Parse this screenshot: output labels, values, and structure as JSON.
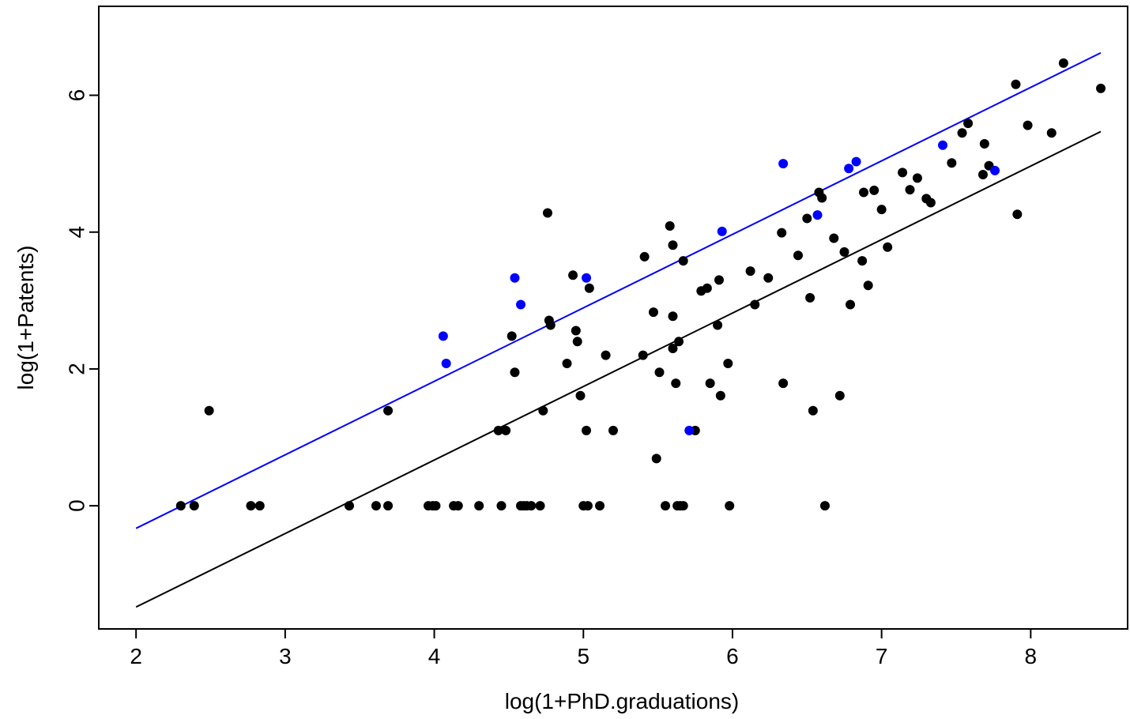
{
  "chart_data": {
    "type": "scatter",
    "title": "",
    "xlabel": "log(1+PhD.graduations)",
    "ylabel": "log(1+Patents)",
    "xlim": [
      1.75,
      8.65
    ],
    "ylim": [
      -1.8,
      7.3
    ],
    "xticks": [
      2,
      3,
      4,
      5,
      6,
      7,
      8
    ],
    "yticks": [
      0,
      2,
      4,
      6
    ],
    "grid": false,
    "legend": "none",
    "series": [
      {
        "color": "#000000",
        "points": [
          [
            2.3,
            0
          ],
          [
            2.39,
            0
          ],
          [
            2.49,
            1.39
          ],
          [
            2.77,
            0
          ],
          [
            2.83,
            0
          ],
          [
            3.43,
            0
          ],
          [
            3.61,
            0
          ],
          [
            3.69,
            0
          ],
          [
            3.69,
            1.39
          ],
          [
            3.96,
            0
          ],
          [
            3.99,
            0
          ],
          [
            4.01,
            0
          ],
          [
            4.13,
            0
          ],
          [
            4.16,
            0
          ],
          [
            4.3,
            0
          ],
          [
            4.43,
            1.1
          ],
          [
            4.45,
            0
          ],
          [
            4.48,
            1.1
          ],
          [
            4.52,
            2.48
          ],
          [
            4.54,
            1.95
          ],
          [
            4.58,
            0
          ],
          [
            4.6,
            0
          ],
          [
            4.62,
            0
          ],
          [
            4.65,
            0
          ],
          [
            4.71,
            0
          ],
          [
            4.73,
            1.39
          ],
          [
            4.76,
            4.28
          ],
          [
            4.77,
            2.71
          ],
          [
            4.78,
            2.64
          ],
          [
            4.89,
            2.08
          ],
          [
            4.93,
            3.37
          ],
          [
            4.95,
            2.56
          ],
          [
            4.96,
            2.4
          ],
          [
            4.98,
            1.61
          ],
          [
            5.0,
            0
          ],
          [
            5.02,
            1.1
          ],
          [
            5.03,
            0
          ],
          [
            5.04,
            3.18
          ],
          [
            5.11,
            0
          ],
          [
            5.15,
            2.2
          ],
          [
            5.2,
            1.1
          ],
          [
            5.4,
            2.2
          ],
          [
            5.41,
            3.64
          ],
          [
            5.47,
            2.83
          ],
          [
            5.49,
            0.69
          ],
          [
            5.51,
            1.95
          ],
          [
            5.55,
            0
          ],
          [
            5.58,
            4.09
          ],
          [
            5.6,
            3.81
          ],
          [
            5.6,
            2.77
          ],
          [
            5.6,
            2.3
          ],
          [
            5.62,
            1.79
          ],
          [
            5.63,
            0
          ],
          [
            5.64,
            2.4
          ],
          [
            5.65,
            0
          ],
          [
            5.67,
            0
          ],
          [
            5.67,
            3.58
          ],
          [
            5.75,
            1.1
          ],
          [
            5.79,
            3.14
          ],
          [
            5.83,
            3.18
          ],
          [
            5.85,
            1.79
          ],
          [
            5.9,
            2.64
          ],
          [
            5.91,
            3.3
          ],
          [
            5.92,
            1.61
          ],
          [
            5.97,
            2.08
          ],
          [
            5.98,
            0
          ],
          [
            6.12,
            3.43
          ],
          [
            6.15,
            2.94
          ],
          [
            6.24,
            3.33
          ],
          [
            6.33,
            3.99
          ],
          [
            6.34,
            1.79
          ],
          [
            6.44,
            3.66
          ],
          [
            6.5,
            4.2
          ],
          [
            6.52,
            3.04
          ],
          [
            6.54,
            1.39
          ],
          [
            6.58,
            4.58
          ],
          [
            6.6,
            4.5
          ],
          [
            6.62,
            0
          ],
          [
            6.68,
            3.91
          ],
          [
            6.72,
            1.61
          ],
          [
            6.75,
            3.71
          ],
          [
            6.79,
            2.94
          ],
          [
            6.87,
            3.58
          ],
          [
            6.88,
            4.58
          ],
          [
            6.91,
            3.22
          ],
          [
            6.95,
            4.61
          ],
          [
            7.0,
            4.33
          ],
          [
            7.04,
            3.78
          ],
          [
            7.14,
            4.87
          ],
          [
            7.19,
            4.62
          ],
          [
            7.24,
            4.79
          ],
          [
            7.3,
            4.49
          ],
          [
            7.33,
            4.43
          ],
          [
            7.47,
            5.01
          ],
          [
            7.54,
            5.45
          ],
          [
            7.58,
            5.59
          ],
          [
            7.68,
            4.84
          ],
          [
            7.69,
            5.29
          ],
          [
            7.72,
            4.97
          ],
          [
            7.9,
            6.16
          ],
          [
            7.91,
            4.26
          ],
          [
            7.98,
            5.56
          ],
          [
            8.14,
            5.45
          ],
          [
            8.22,
            6.47
          ],
          [
            8.47,
            6.1
          ]
        ]
      },
      {
        "color": "#0000ff",
        "points": [
          [
            4.06,
            2.48
          ],
          [
            4.08,
            2.08
          ],
          [
            4.54,
            3.33
          ],
          [
            4.58,
            2.94
          ],
          [
            5.02,
            3.33
          ],
          [
            5.71,
            1.1
          ],
          [
            5.93,
            4.01
          ],
          [
            6.34,
            5.0
          ],
          [
            6.57,
            4.25
          ],
          [
            6.78,
            4.93
          ],
          [
            6.83,
            5.03
          ],
          [
            7.41,
            5.27
          ],
          [
            7.76,
            4.9
          ]
        ]
      }
    ],
    "lines": [
      {
        "color": "#0000ff",
        "x": [
          2.0,
          8.47
        ],
        "y": [
          -0.33,
          6.62
        ]
      },
      {
        "color": "#000000",
        "x": [
          2.0,
          8.47
        ],
        "y": [
          -1.48,
          5.47
        ]
      }
    ]
  }
}
